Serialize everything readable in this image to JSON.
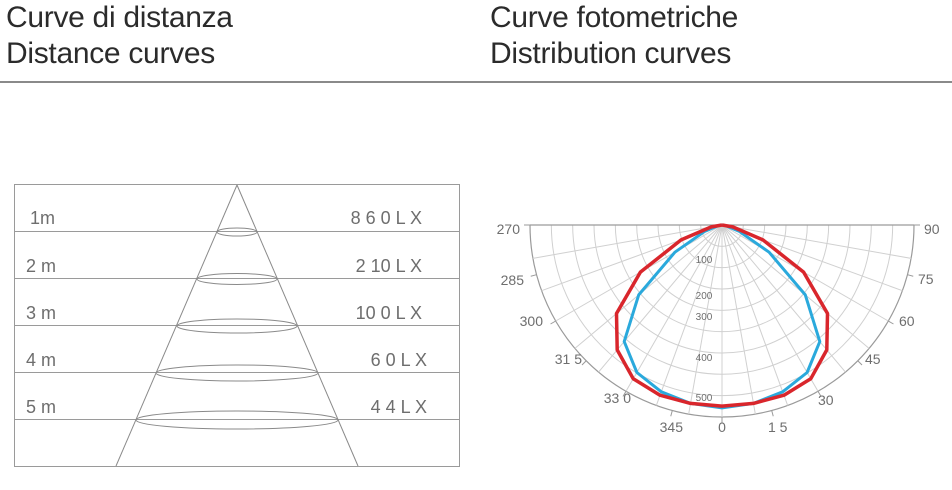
{
  "left_title": {
    "line1": "Curve di distanza",
    "line2": "Distance curves"
  },
  "right_title": {
    "line1": "Curve fotometriche",
    "line2": "Distribution curves"
  },
  "distance_rows": [
    {
      "distance": "1m",
      "lux": "8 6 0 L X"
    },
    {
      "distance": "2 m",
      "lux": "2 10 L X"
    },
    {
      "distance": "3 m",
      "lux": "10 0 L X"
    },
    {
      "distance": "4 m",
      "lux": "6 0 L X"
    },
    {
      "distance": "5 m",
      "lux": "4 4 L X"
    }
  ],
  "polar": {
    "angle_labels": {
      "a270": "270",
      "a285": "285",
      "a300": "300",
      "a315": "31 5",
      "a330": "33 0",
      "a345": "345",
      "a0": "0",
      "a15": "1 5",
      "a30": "30",
      "a45": "45",
      "a60": "60",
      "a75": "75",
      "a90": "90"
    },
    "radial_labels": {
      "r100": "100",
      "r200": "200",
      "r300": "300",
      "r400": "400",
      "r500": "500"
    },
    "max_radius_value": 530,
    "curve_red": {
      "color": "#d9262c",
      "points": [
        [
          0,
          0
        ],
        [
          10,
          30
        ],
        [
          20,
          120
        ],
        [
          30,
          260
        ],
        [
          40,
          380
        ],
        [
          50,
          450
        ],
        [
          60,
          490
        ],
        [
          70,
          500
        ],
        [
          80,
          500
        ],
        [
          90,
          500
        ],
        [
          100,
          500
        ],
        [
          110,
          500
        ],
        [
          120,
          490
        ],
        [
          130,
          450
        ],
        [
          140,
          380
        ],
        [
          150,
          260
        ],
        [
          160,
          120
        ],
        [
          170,
          30
        ],
        [
          180,
          0
        ]
      ]
    },
    "curve_blue": {
      "color": "#2aa9dc",
      "points": [
        [
          0,
          0
        ],
        [
          10,
          10
        ],
        [
          20,
          50
        ],
        [
          30,
          150
        ],
        [
          40,
          300
        ],
        [
          50,
          420
        ],
        [
          60,
          470
        ],
        [
          70,
          490
        ],
        [
          80,
          500
        ],
        [
          90,
          505
        ],
        [
          100,
          500
        ],
        [
          110,
          490
        ],
        [
          120,
          470
        ],
        [
          130,
          420
        ],
        [
          140,
          300
        ],
        [
          150,
          150
        ],
        [
          160,
          50
        ],
        [
          170,
          10
        ],
        [
          180,
          0
        ]
      ]
    }
  }
}
